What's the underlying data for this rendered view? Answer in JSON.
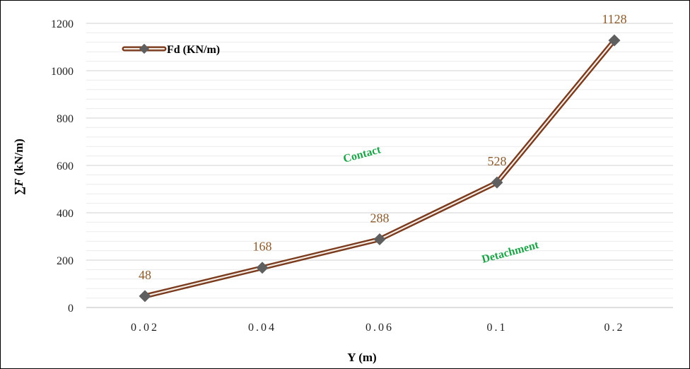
{
  "chart_data": {
    "type": "line",
    "categories": [
      "0.02",
      "0.04",
      "0.06",
      "0.1",
      "0.2"
    ],
    "series": [
      {
        "name": "Fd (KN/m)",
        "values": [
          48,
          168,
          288,
          528,
          1128
        ],
        "data_labels": [
          "48",
          "168",
          "288",
          "528",
          "1128"
        ]
      }
    ],
    "xlabel": "Y (m)",
    "ylabel_prefix": "∑",
    "ylabel_var": "F",
    "ylabel_unit": " (kN/m)",
    "ylim": [
      0,
      1200
    ],
    "yticks": [
      "0",
      "200",
      "400",
      "600",
      "800",
      "1000",
      "1200"
    ],
    "grid": true,
    "legend": "top-left",
    "annotations": [
      "Contact",
      "Detachment"
    ],
    "colors": {
      "line": "#7a3b1e",
      "line_inner": "#f4ece4",
      "marker": "#5f5f5f",
      "data_label": "#8a5a2b",
      "annotation": "#1fa34a",
      "grid": "#d9d9d9"
    }
  }
}
